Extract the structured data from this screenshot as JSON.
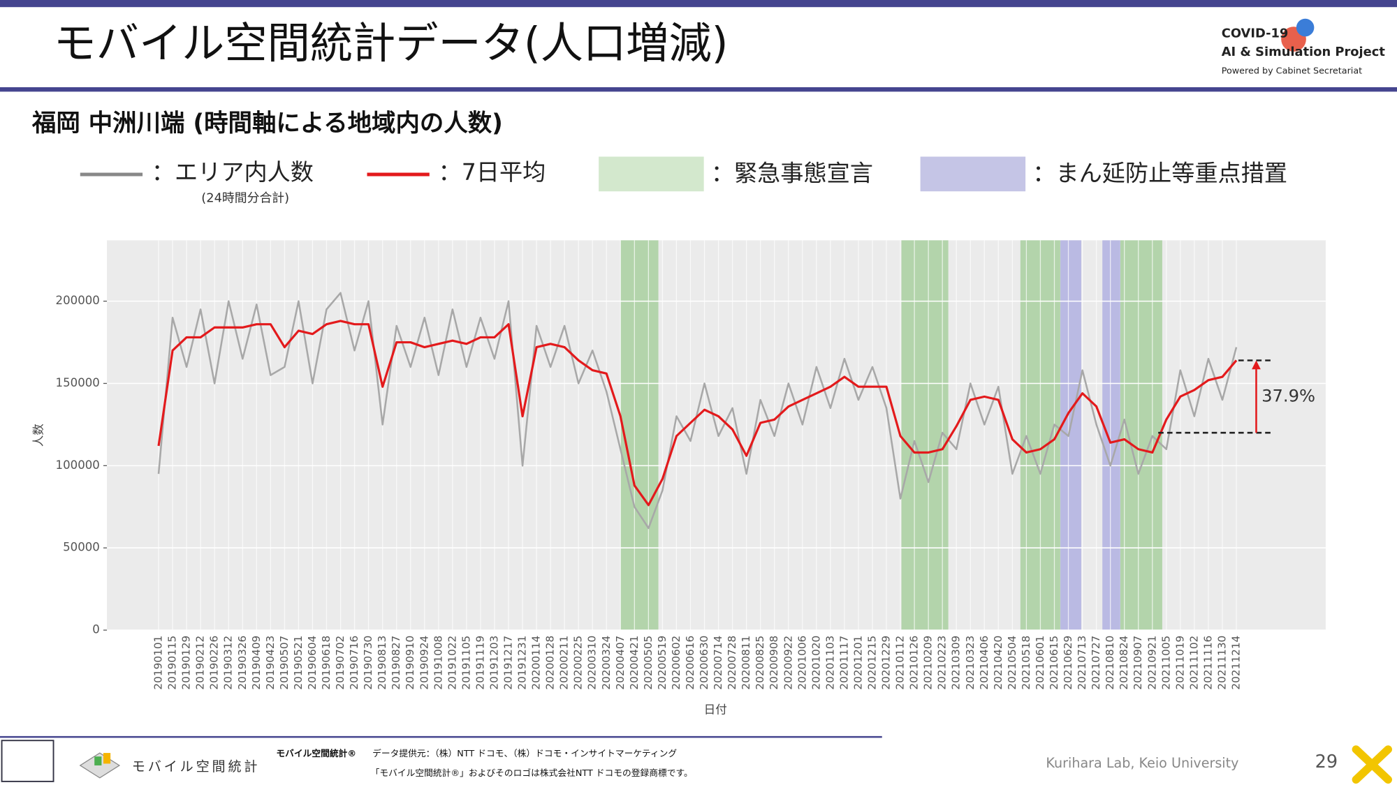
{
  "header": {
    "title": "モバイル空間統計データ(人口増減)",
    "logo": [
      "COVID-19",
      "AI & Simulation Project",
      "Powered by Cabinet Secretariat"
    ]
  },
  "subtitle": "福岡 中洲川端 (時間軸による地域内の人数)",
  "chart_data": {
    "type": "line",
    "ylabel": "人数",
    "xlabel": "日付",
    "categories": [
      "20190101",
      "20190115",
      "20190129",
      "20190212",
      "20190226",
      "20190312",
      "20190326",
      "20190409",
      "20190423",
      "20190507",
      "20190521",
      "20190604",
      "20190618",
      "20190702",
      "20190716",
      "20190730",
      "20190813",
      "20190827",
      "20190910",
      "20190924",
      "20191008",
      "20191022",
      "20191105",
      "20191119",
      "20191203",
      "20191217",
      "20191231",
      "20200114",
      "20200128",
      "20200211",
      "20200225",
      "20200310",
      "20200324",
      "20200407",
      "20200421",
      "20200505",
      "20200519",
      "20200602",
      "20200616",
      "20200630",
      "20200714",
      "20200728",
      "20200811",
      "20200825",
      "20200908",
      "20200922",
      "20201006",
      "20201020",
      "20201103",
      "20201117",
      "20201201",
      "20201215",
      "20201229",
      "20210112",
      "20210126",
      "20210209",
      "20210223",
      "20210309",
      "20210323",
      "20210406",
      "20210420",
      "20210504",
      "20210518",
      "20210601",
      "20210615",
      "20210629",
      "20210713",
      "20210727",
      "20210810",
      "20210824",
      "20210907",
      "20210921",
      "20211005",
      "20211019",
      "20211102",
      "20211116",
      "20211130",
      "20211214"
    ],
    "series": [
      {
        "name": "：エリア内人数",
        "note": "(24時間分合計)",
        "color": "#a8a8a8",
        "values": [
          95000,
          190000,
          160000,
          195000,
          150000,
          200000,
          165000,
          198000,
          155000,
          160000,
          200000,
          150000,
          195000,
          205000,
          170000,
          200000,
          125000,
          185000,
          160000,
          190000,
          155000,
          195000,
          160000,
          190000,
          165000,
          200000,
          100000,
          185000,
          160000,
          185000,
          150000,
          170000,
          145000,
          110000,
          75000,
          62000,
          85000,
          130000,
          115000,
          150000,
          118000,
          135000,
          95000,
          140000,
          118000,
          150000,
          125000,
          160000,
          135000,
          165000,
          140000,
          160000,
          135000,
          80000,
          115000,
          90000,
          120000,
          110000,
          150000,
          125000,
          148000,
          95000,
          118000,
          95000,
          125000,
          118000,
          158000,
          125000,
          100000,
          128000,
          95000,
          118000,
          110000,
          158000,
          130000,
          165000,
          140000,
          172000
        ]
      },
      {
        "name": "：7日平均",
        "color": "#e31a1c",
        "values": [
          112000,
          170000,
          178000,
          178000,
          184000,
          184000,
          184000,
          186000,
          186000,
          172000,
          182000,
          180000,
          186000,
          188000,
          186000,
          186000,
          148000,
          175000,
          175000,
          172000,
          174000,
          176000,
          174000,
          178000,
          178000,
          186000,
          130000,
          172000,
          174000,
          172000,
          164000,
          158000,
          156000,
          130000,
          88000,
          76000,
          92000,
          118000,
          126000,
          134000,
          130000,
          122000,
          106000,
          126000,
          128000,
          136000,
          140000,
          144000,
          148000,
          154000,
          148000,
          148000,
          148000,
          118000,
          108000,
          108000,
          110000,
          124000,
          140000,
          142000,
          140000,
          116000,
          108000,
          110000,
          116000,
          132000,
          144000,
          136000,
          114000,
          116000,
          110000,
          108000,
          128000,
          142000,
          146000,
          152000,
          154000,
          164000
        ]
      }
    ],
    "spans": [
      {
        "name": "：緊急事態宣言",
        "color": "#a9d0a0",
        "swatch": "#d3e8cd",
        "periods": [
          [
            "20200407",
            "20200514"
          ],
          [
            "20210113",
            "20210228"
          ],
          [
            "20210512",
            "20210620"
          ],
          [
            "20210820",
            "20210930"
          ]
        ]
      },
      {
        "name": "：まん延防止等重点措置",
        "color": "#b1b1e2",
        "swatch": "#c5c5e6",
        "periods": [
          [
            "20210621",
            "20210711"
          ],
          [
            "20210802",
            "20210819"
          ]
        ]
      }
    ],
    "annotation": {
      "text": "37.9%",
      "from": 120000,
      "to": 164000,
      "color": "#e31a1c"
    },
    "ylim": [
      0,
      237000
    ],
    "yticks": [
      0,
      50000,
      100000,
      150000,
      200000
    ],
    "grid": true
  },
  "footer": {
    "brand": "モバイル空間統計",
    "credit_title": "モバイル空間統計®",
    "credit": "データ提供元：（株）NTT ドコモ、（株）ドコモ・インサイトマーケティング",
    "trademark": "「モバイル空間統計®」およびそのロゴは株式会社NTT ドコモの登録商標です。",
    "lab": "Kurihara Lab, Keio University",
    "page": "29"
  }
}
